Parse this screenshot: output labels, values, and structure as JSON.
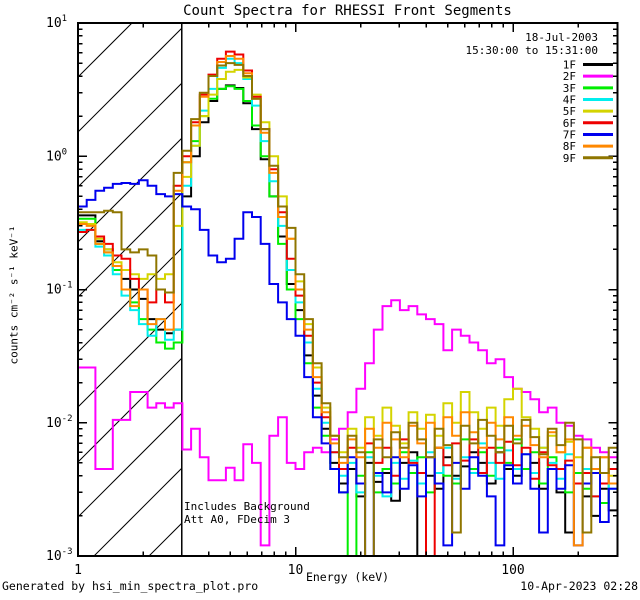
{
  "title": "Count Spectra for RHESSI Front Segments",
  "header": {
    "date_line1": "18-Jul-2003",
    "date_line2": "15:30:00 to 15:31:00"
  },
  "annotations": {
    "line1": "Includes Background",
    "line2": "Att A0, FDecim 3"
  },
  "footer": {
    "left": "Generated by hsi_min_spectra_plot.pro",
    "right": "10-Apr-2023 02:28"
  },
  "axes": {
    "xlabel": "Energy (keV)",
    "ylabel": "counts cm⁻² s⁻¹ keV⁻¹",
    "x_scale": "log",
    "y_scale": "log",
    "xlim_kev": [
      1,
      302
    ],
    "ylim": [
      0.001,
      10
    ],
    "x_ticks": [
      {
        "label": "1",
        "log10": 0
      },
      {
        "label": "10",
        "log10": 1
      },
      {
        "label": "100",
        "log10": 2
      }
    ],
    "y_ticks": [
      {
        "base": "10",
        "exp": "1",
        "log10": 1
      },
      {
        "base": "10",
        "exp": "0",
        "log10": 0
      },
      {
        "base": "10",
        "exp": "-1",
        "log10": -1
      },
      {
        "base": "10",
        "exp": "-2",
        "log10": -2
      },
      {
        "base": "10",
        "exp": "-3",
        "log10": -3
      }
    ],
    "hatch_region_kev": [
      1,
      3
    ]
  },
  "chart_data": {
    "type": "line",
    "style": "histogram-step",
    "x_grid": {
      "start_kev": 1,
      "log10_step": 0.04,
      "bins": 62
    },
    "series": [
      {
        "name": "1F",
        "color": "#000000",
        "values": [
          0.36,
          0.36,
          0.23,
          0.2,
          0.15,
          0.12,
          0.1,
          0.085,
          0.06,
          0.05,
          0.047,
          0.05,
          0.5,
          1.0,
          1.8,
          2.6,
          3.2,
          3.4,
          3.25,
          2.5,
          1.6,
          0.95,
          0.5,
          0.25,
          0.11,
          0.07,
          0.032,
          0.016,
          0.009,
          0.005,
          0.0035,
          0.0045,
          0.0028,
          0.005,
          0.0036,
          0.0042,
          0.0026,
          0.005,
          0.006,
          0.001,
          0.004,
          0.0032,
          0.0055,
          0.004,
          0.0047,
          0.006,
          0.005,
          0.0035,
          0.006,
          0.0045,
          0.004,
          0.0045,
          0.005,
          0.0032,
          0.0045,
          0.003,
          0.0015,
          0.0035,
          0.0028,
          0.002,
          0.0032,
          0.0022
        ]
      },
      {
        "name": "2F",
        "color": "#ff00ff",
        "values": [
          0.026,
          0.026,
          0.0045,
          0.0045,
          0.0105,
          0.0105,
          0.017,
          0.017,
          0.013,
          0.014,
          0.013,
          0.014,
          0.0063,
          0.009,
          0.0055,
          0.0037,
          0.0037,
          0.0046,
          0.0037,
          0.0069,
          0.005,
          0.0012,
          0.008,
          0.011,
          0.005,
          0.0045,
          0.006,
          0.0065,
          0.006,
          0.0075,
          0.009,
          0.012,
          0.018,
          0.028,
          0.05,
          0.075,
          0.083,
          0.07,
          0.075,
          0.065,
          0.06,
          0.055,
          0.035,
          0.05,
          0.045,
          0.04,
          0.035,
          0.028,
          0.03,
          0.022,
          0.018,
          0.017,
          0.015,
          0.012,
          0.013,
          0.01,
          0.0095,
          0.008,
          0.0075,
          0.0065,
          0.006,
          0.0055
        ]
      },
      {
        "name": "3F",
        "color": "#00ee00",
        "values": [
          0.34,
          0.34,
          0.22,
          0.19,
          0.14,
          0.1,
          0.08,
          0.06,
          0.05,
          0.04,
          0.036,
          0.04,
          0.9,
          1.3,
          2.0,
          2.7,
          3.2,
          3.35,
          3.2,
          2.6,
          1.7,
          1.0,
          0.5,
          0.22,
          0.1,
          0.06,
          0.028,
          0.013,
          0.008,
          0.0045,
          0.003,
          0.001,
          0.004,
          0.006,
          0.003,
          0.0045,
          0.0035,
          0.006,
          0.0042,
          0.0055,
          0.003,
          0.0065,
          0.004,
          0.0035,
          0.0075,
          0.0045,
          0.006,
          0.004,
          0.0065,
          0.005,
          0.0075,
          0.0045,
          0.006,
          0.0035,
          0.0055,
          0.0045,
          0.003,
          0.0042,
          0.0032,
          0.0045,
          0.0025,
          0.0035
        ]
      },
      {
        "name": "4F",
        "color": "#00eeee",
        "values": [
          0.28,
          0.28,
          0.21,
          0.18,
          0.13,
          0.09,
          0.07,
          0.055,
          0.045,
          0.06,
          0.042,
          0.05,
          0.6,
          1.2,
          2.2,
          3.2,
          4.6,
          5.4,
          5.0,
          3.8,
          2.4,
          1.3,
          0.65,
          0.3,
          0.14,
          0.08,
          0.04,
          0.018,
          0.01,
          0.006,
          0.004,
          0.005,
          0.003,
          0.0055,
          0.004,
          0.0028,
          0.005,
          0.0038,
          0.0052,
          0.0035,
          0.006,
          0.0042,
          0.0065,
          0.0038,
          0.0055,
          0.0042,
          0.007,
          0.005,
          0.0038,
          0.0062,
          0.0045,
          0.0058,
          0.0042,
          0.0065,
          0.005,
          0.0038,
          0.0058,
          0.0035,
          0.0045,
          0.0028,
          0.0042,
          0.0032
        ]
      },
      {
        "name": "5F",
        "color": "#d4d400",
        "values": [
          0.32,
          0.31,
          0.24,
          0.2,
          0.16,
          0.14,
          0.13,
          0.12,
          0.13,
          0.12,
          0.13,
          0.3,
          0.7,
          1.2,
          2.0,
          2.9,
          3.8,
          4.3,
          4.45,
          3.9,
          2.9,
          1.8,
          1.0,
          0.5,
          0.24,
          0.115,
          0.055,
          0.026,
          0.013,
          0.008,
          0.006,
          0.009,
          0.0065,
          0.011,
          0.008,
          0.013,
          0.0095,
          0.007,
          0.012,
          0.009,
          0.0115,
          0.008,
          0.014,
          0.01,
          0.017,
          0.012,
          0.009,
          0.013,
          0.0095,
          0.015,
          0.018,
          0.011,
          0.009,
          0.0065,
          0.008,
          0.006,
          0.0072,
          0.0055,
          0.0065,
          0.0045,
          0.0055,
          0.004
        ]
      },
      {
        "name": "6F",
        "color": "#ee0000",
        "values": [
          0.27,
          0.28,
          0.25,
          0.22,
          0.18,
          0.17,
          0.12,
          0.1,
          0.08,
          0.1,
          0.08,
          0.6,
          1.0,
          1.8,
          2.9,
          4.1,
          5.4,
          6.1,
          5.8,
          4.4,
          2.8,
          1.6,
          0.8,
          0.38,
          0.17,
          0.09,
          0.045,
          0.02,
          0.011,
          0.006,
          0.0045,
          0.0065,
          0.0035,
          0.007,
          0.005,
          0.0065,
          0.004,
          0.0075,
          0.005,
          0.0042,
          0.001,
          0.0065,
          0.0048,
          0.007,
          0.0052,
          0.0075,
          0.0042,
          0.0065,
          0.005,
          0.0072,
          0.0048,
          0.0065,
          0.0038,
          0.006,
          0.0048,
          0.0045,
          0.0052,
          0.0035,
          0.0042,
          0.0028,
          0.0035,
          0.0045
        ]
      },
      {
        "name": "7F",
        "color": "#0000ee",
        "values": [
          0.42,
          0.47,
          0.55,
          0.58,
          0.62,
          0.63,
          0.62,
          0.66,
          0.6,
          0.52,
          0.5,
          0.52,
          0.42,
          0.4,
          0.28,
          0.18,
          0.16,
          0.17,
          0.24,
          0.38,
          0.35,
          0.22,
          0.11,
          0.08,
          0.06,
          0.045,
          0.022,
          0.011,
          0.007,
          0.0045,
          0.003,
          0.0055,
          0.0035,
          0.001,
          0.0042,
          0.003,
          0.0055,
          0.0032,
          0.0048,
          0.0028,
          0.0055,
          0.0035,
          0.0012,
          0.005,
          0.0032,
          0.0055,
          0.004,
          0.0028,
          0.0012,
          0.0048,
          0.0035,
          0.0058,
          0.0032,
          0.0015,
          0.0045,
          0.0032,
          0.0048,
          0.0012,
          0.0035,
          0.0042,
          0.0018,
          0.0032
        ]
      },
      {
        "name": "8F",
        "color": "#ff8800",
        "values": [
          0.31,
          0.3,
          0.22,
          0.19,
          0.15,
          0.1,
          0.075,
          0.1,
          0.055,
          0.06,
          0.05,
          0.55,
          0.9,
          1.7,
          2.8,
          4.0,
          5.1,
          5.65,
          5.4,
          4.2,
          2.7,
          1.5,
          0.75,
          0.35,
          0.24,
          0.1,
          0.05,
          0.022,
          0.012,
          0.007,
          0.005,
          0.0075,
          0.0055,
          0.009,
          0.0065,
          0.01,
          0.0075,
          0.0055,
          0.0095,
          0.007,
          0.01,
          0.0065,
          0.011,
          0.008,
          0.012,
          0.0085,
          0.0065,
          0.01,
          0.0075,
          0.011,
          0.008,
          0.0095,
          0.0068,
          0.0055,
          0.0085,
          0.006,
          0.0075,
          0.0012,
          0.0065,
          0.0045,
          0.0055,
          0.0035
        ]
      },
      {
        "name": "9F",
        "color": "#8f7600",
        "values": [
          0.38,
          0.38,
          0.38,
          0.39,
          0.38,
          0.2,
          0.19,
          0.2,
          0.18,
          0.1,
          0.095,
          0.75,
          1.1,
          1.9,
          3.0,
          4.0,
          4.8,
          5.0,
          4.85,
          4.0,
          2.7,
          1.6,
          0.85,
          0.42,
          0.29,
          0.13,
          0.06,
          0.028,
          0.014,
          0.008,
          0.0055,
          0.008,
          0.006,
          0.001,
          0.0075,
          0.0055,
          0.0085,
          0.0065,
          0.01,
          0.0075,
          0.0055,
          0.009,
          0.0068,
          0.0015,
          0.0095,
          0.007,
          0.0105,
          0.008,
          0.006,
          0.0095,
          0.007,
          0.0105,
          0.0078,
          0.0058,
          0.009,
          0.0068,
          0.01,
          0.0075,
          0.0015,
          0.0055,
          0.0042,
          0.0065
        ]
      }
    ],
    "legend_position": "upper-right"
  }
}
